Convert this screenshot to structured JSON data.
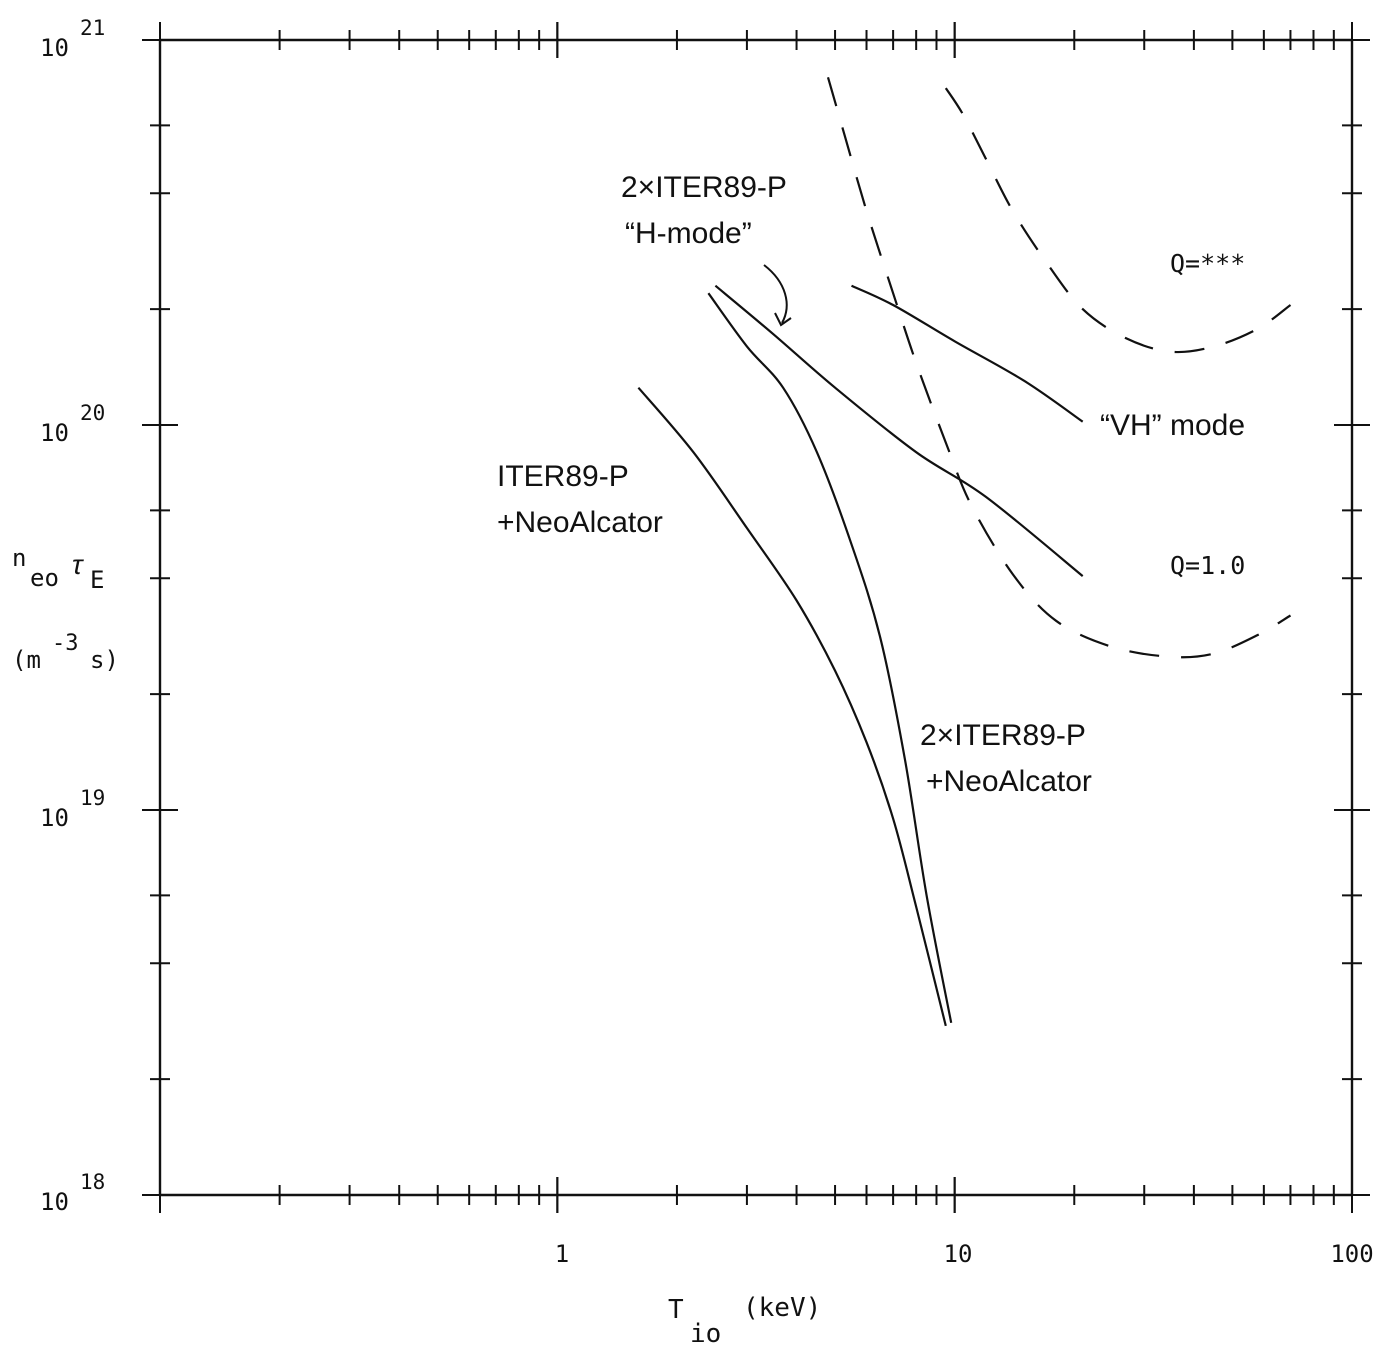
{
  "chart_data": {
    "type": "line",
    "xscale": "log",
    "yscale": "log",
    "xlim": [
      0.1,
      100
    ],
    "ylim": [
      1e+18,
      1e+21
    ],
    "x_tick_labels": [
      {
        "value": 1,
        "text": "1"
      },
      {
        "value": 10,
        "text": "10"
      },
      {
        "value": 100,
        "text": "100"
      }
    ],
    "y_tick_labels": [
      {
        "value": 1e+18,
        "mantissa": "10",
        "exponent": "18"
      },
      {
        "value": 1e+19,
        "mantissa": "10",
        "exponent": "19"
      },
      {
        "value": 1e+20,
        "mantissa": "10",
        "exponent": "20"
      },
      {
        "value": 1e+21,
        "mantissa": "10",
        "exponent": "21"
      }
    ],
    "xlabel": {
      "main": "T",
      "sub": "io",
      "unit": "(keV)"
    },
    "ylabel": {
      "line1_main": "n",
      "line1_sub": "eo",
      "line1_tau": "τ",
      "line1_tau_sub": "E",
      "line2_open": "(m",
      "line2_sup": "-3",
      "line2_close": "s)"
    },
    "grid": false,
    "series": [
      {
        "id": "iter89-neoalcator",
        "style": "solid",
        "points": [
          [
            1.6,
            1.25e+20
          ],
          [
            2.2,
            8.5e+19
          ],
          [
            3.0,
            5.4e+19
          ],
          [
            4.0,
            3.5e+19
          ],
          [
            5.0,
            2.3e+19
          ],
          [
            6.0,
            1.5e+19
          ],
          [
            7.0,
            9.5e+18
          ],
          [
            8.0,
            5.6e+18
          ],
          [
            9.5,
            2.75e+18
          ]
        ]
      },
      {
        "id": "2x-iter89-neoalcator",
        "style": "solid",
        "points": [
          [
            2.4,
            2.2e+20
          ],
          [
            3.0,
            1.6e+20
          ],
          [
            3.7,
            1.25e+20
          ],
          [
            4.5,
            8.5e+19
          ],
          [
            5.5,
            4.9e+19
          ],
          [
            6.5,
            2.8e+19
          ],
          [
            7.5,
            1.35e+19
          ],
          [
            8.5,
            6e+18
          ],
          [
            9.8,
            2.8e+18
          ]
        ]
      },
      {
        "id": "2x-iter89-hmode",
        "style": "solid",
        "points": [
          [
            2.5,
            2.3e+20
          ],
          [
            3.5,
            1.72e+20
          ],
          [
            5.0,
            1.25e+20
          ],
          [
            8.0,
            8.5e+19
          ],
          [
            12.0,
            6.5e+19
          ],
          [
            21.0,
            4.05e+19
          ]
        ]
      },
      {
        "id": "vh-mode",
        "style": "solid",
        "points": [
          [
            5.5,
            2.3e+20
          ],
          [
            7.0,
            2.05e+20
          ],
          [
            10.0,
            1.65e+20
          ],
          [
            15.0,
            1.3e+20
          ],
          [
            21.0,
            1.02e+20
          ]
        ]
      },
      {
        "id": "q-stars",
        "style": "dashed",
        "points": [
          [
            9.5,
            7.5e+20
          ],
          [
            10.5,
            6.4e+20
          ],
          [
            12.0,
            4.9e+20
          ],
          [
            14.0,
            3.6e+20
          ],
          [
            17.0,
            2.65e+20
          ],
          [
            21.0,
            2e+20
          ],
          [
            27.0,
            1.68e+20
          ],
          [
            35.0,
            1.55e+20
          ],
          [
            45.0,
            1.6e+20
          ],
          [
            58.0,
            1.78e+20
          ],
          [
            70.0,
            2.05e+20
          ]
        ]
      },
      {
        "id": "q-1",
        "style": "dashed",
        "points": [
          [
            4.8,
            8e+20
          ],
          [
            5.3,
            5.6e+20
          ],
          [
            6.0,
            3.6e+20
          ],
          [
            7.0,
            2.2e+20
          ],
          [
            8.0,
            1.45e+20
          ],
          [
            9.5,
            9e+19
          ],
          [
            11.0,
            6.2e+19
          ],
          [
            14.0,
            4.1e+19
          ],
          [
            18.0,
            3.1e+19
          ],
          [
            25.0,
            2.65e+19
          ],
          [
            35.0,
            2.5e+19
          ],
          [
            45.0,
            2.55e+19
          ],
          [
            58.0,
            2.85e+19
          ],
          [
            70.0,
            3.2e+19
          ]
        ]
      }
    ],
    "annotations": {
      "iter89_line1": "ITER89-P",
      "iter89_line2": "+NeoAlcator",
      "twox_neo_line1": "2×ITER89-P",
      "twox_neo_line2": "+NeoAlcator",
      "twox_h_line1": "2×ITER89-P",
      "twox_h_line2": "“H-mode”",
      "vh_mode": "“VH” mode",
      "q_stars": "Q=***",
      "q_one": "Q=1.0"
    }
  }
}
